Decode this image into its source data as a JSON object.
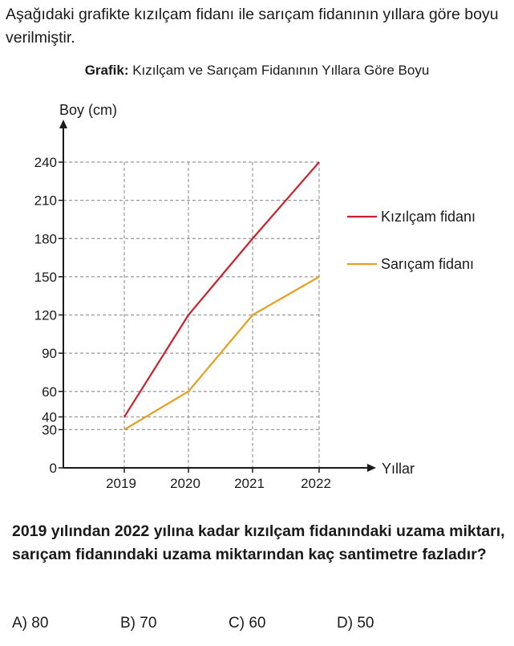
{
  "intro_text": "Aşağıdaki grafikte kızılçam fidanı ile sarıçam fidanının yıllara göre boyu verilmiştir.",
  "chart_title_prefix": "Grafik:",
  "chart_title": "Kızılçam ve Sarıçam Fidanının Yıllara Göre Boyu",
  "question": "2019 yılından 2022 yılına kadar kızılçam fidanındaki uzama miktarı, sarıçam fidanındaki uzama miktarından kaç santimetre fazladır?",
  "options": [
    {
      "label": "A) 80"
    },
    {
      "label": "B) 70"
    },
    {
      "label": "C) 60"
    },
    {
      "label": "D) 50"
    }
  ],
  "colors": {
    "kizilcam": "#c8232c",
    "saricam": "#e5a020",
    "grid": "#999999",
    "axis": "#1a1a1a"
  },
  "chart_data": {
    "type": "line",
    "title": "Kızılçam ve Sarıçam Fidanının Yıllara Göre Boyu",
    "xlabel": "Yıllar",
    "ylabel": "Boy (cm)",
    "categories": [
      "2019",
      "2020",
      "2021",
      "2022"
    ],
    "yticks": [
      0,
      30,
      40,
      60,
      90,
      120,
      150,
      180,
      210,
      240
    ],
    "ylim": [
      0,
      240
    ],
    "grid": true,
    "legend_position": "right",
    "series": [
      {
        "name": "Kızılçam fidanı",
        "values": [
          40,
          120,
          180,
          240
        ],
        "color": "#c8232c"
      },
      {
        "name": "Sarıçam fidanı",
        "values": [
          30,
          60,
          120,
          150
        ],
        "color": "#e5a020"
      }
    ]
  }
}
